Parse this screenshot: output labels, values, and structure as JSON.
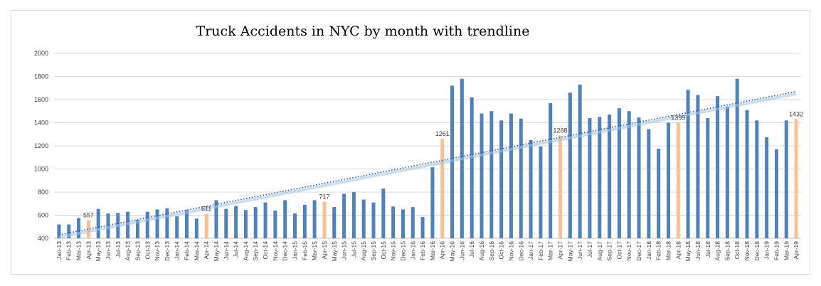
{
  "chart_data": {
    "type": "bar",
    "title": "Truck Accidents in NYC by month with trendline",
    "xlabel": "",
    "ylabel": "",
    "ylim": [
      400,
      2000
    ],
    "yticks": [
      400,
      600,
      800,
      1000,
      1200,
      1400,
      1600,
      1800,
      2000
    ],
    "grid": true,
    "legend": "none",
    "colors": {
      "bar": "#4f81bd",
      "highlight": "#fac090",
      "trend": "#4f81bd",
      "grid": "#d9d9d9"
    },
    "categories": [
      "Jan-13",
      "Feb-13",
      "Mar-13",
      "Apr-13",
      "May-13",
      "Jun-13",
      "Jul-13",
      "Aug-13",
      "Sep-13",
      "Oct-13",
      "Nov-13",
      "Dec-13",
      "Jan-14",
      "Feb-14",
      "Mar-14",
      "Apr-14",
      "May-14",
      "Jun-14",
      "Jul-14",
      "Aug-14",
      "Sep-14",
      "Oct-14",
      "Nov-14",
      "Dec-14",
      "Jan-15",
      "Feb-15",
      "Mar-15",
      "Apr-15",
      "May-15",
      "Jun-15",
      "Jul-15",
      "Aug-15",
      "Sep-15",
      "Oct-15",
      "Nov-15",
      "Dec-15",
      "Jan-16",
      "Feb-16",
      "Mar-16",
      "Apr-16",
      "May-16",
      "Jun-16",
      "Jul-16",
      "Aug-16",
      "Sep-16",
      "Oct-16",
      "Nov-16",
      "Dec-16",
      "Jan-17",
      "Feb-17",
      "Mar-17",
      "Apr-17",
      "May-17",
      "Jun-17",
      "Jul-17",
      "Aug-17",
      "Sep-17",
      "Oct-17",
      "Nov-17",
      "Dec-17",
      "Jan-18",
      "Feb-18",
      "Mar-18",
      "Apr-18",
      "May-18",
      "Jun-18",
      "Jul-18",
      "Aug-18",
      "Sep-18",
      "Oct-18",
      "Nov-18",
      "Dec-18",
      "Jan-19",
      "Feb-19",
      "Mar-19",
      "Apr-19"
    ],
    "values": [
      520,
      520,
      575,
      557,
      655,
      615,
      620,
      630,
      560,
      630,
      650,
      660,
      590,
      645,
      570,
      611,
      730,
      655,
      680,
      645,
      670,
      710,
      640,
      730,
      615,
      690,
      730,
      717,
      670,
      785,
      800,
      735,
      710,
      830,
      675,
      650,
      670,
      585,
      1015,
      1261,
      1720,
      1780,
      1620,
      1480,
      1500,
      1420,
      1480,
      1435,
      1250,
      1195,
      1570,
      1288,
      1660,
      1730,
      1440,
      1450,
      1470,
      1525,
      1500,
      1445,
      1345,
      1175,
      1400,
      1399,
      1685,
      1640,
      1440,
      1630,
      1540,
      1780,
      1510,
      1420,
      1275,
      1170,
      1420,
      1432
    ],
    "highlighted": [
      "Apr-13",
      "Apr-14",
      "Apr-15",
      "Apr-16",
      "Apr-17",
      "Apr-18",
      "Apr-19"
    ],
    "data_labels": [
      {
        "category": "Apr-13",
        "text": "557"
      },
      {
        "category": "Apr-14",
        "text": "611"
      },
      {
        "category": "Apr-15",
        "text": "717"
      },
      {
        "category": "Apr-16",
        "text": "1261"
      },
      {
        "category": "Apr-17",
        "text": "1288"
      },
      {
        "category": "Apr-18",
        "text": "1399"
      },
      {
        "category": "Apr-19",
        "text": "1432"
      }
    ],
    "trendlines": [
      {
        "style": "dotted",
        "start": 430,
        "end": 1670
      },
      {
        "style": "solid-faint",
        "start": 410,
        "end": 1650
      }
    ]
  }
}
